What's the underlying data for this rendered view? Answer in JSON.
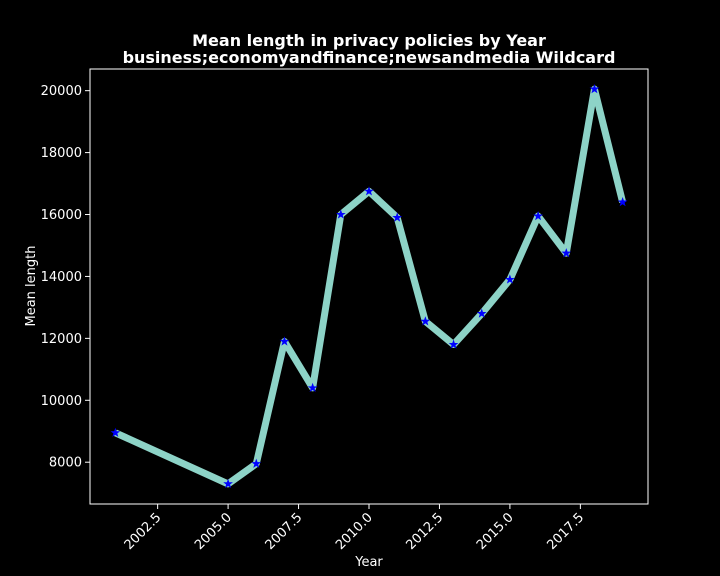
{
  "chart_data": {
    "type": "line",
    "title_line1": "Mean length in privacy policies by Year",
    "title_line2": "business;economyandfinance;newsandmedia Wildcard",
    "xlabel": "Year",
    "ylabel": "Mean length",
    "xlim": [
      2000.1,
      2019.9
    ],
    "ylim": [
      6650,
      20700
    ],
    "x_ticks": [
      2002.5,
      2005.0,
      2007.5,
      2010.0,
      2012.5,
      2015.0,
      2017.5
    ],
    "x_tick_labels": [
      "2002.5",
      "2005.0",
      "2007.5",
      "2010.0",
      "2012.5",
      "2015.0",
      "2017.5"
    ],
    "y_ticks": [
      8000,
      10000,
      12000,
      14000,
      16000,
      18000,
      20000
    ],
    "y_tick_labels": [
      "8000",
      "10000",
      "12000",
      "14000",
      "16000",
      "18000",
      "20000"
    ],
    "grid": false,
    "series": [
      {
        "line_color": "#8dd3c7",
        "marker_color": "#0000ff",
        "marker": "star",
        "x": [
          2001,
          2005,
          2006,
          2007,
          2008,
          2009,
          2010,
          2011,
          2012,
          2013,
          2014,
          2015,
          2016,
          2017,
          2018,
          2019
        ],
        "y": [
          8950,
          7300,
          7950,
          11900,
          10400,
          16000,
          16750,
          15900,
          12550,
          11800,
          12800,
          13900,
          15950,
          14750,
          20050,
          16400
        ]
      }
    ]
  },
  "colors": {
    "background": "#000000",
    "axes": "#ffffff",
    "text": "#ffffff"
  }
}
